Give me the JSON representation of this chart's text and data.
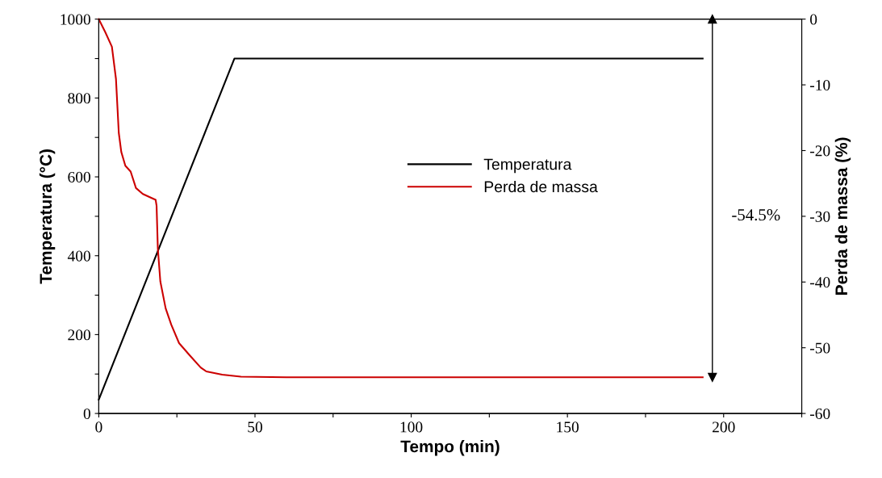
{
  "chart_data": {
    "type": "line",
    "xlabel": "Tempo (min)",
    "ylabel": "Temperatura (°C)",
    "y2label": "Perda de massa (%)",
    "xlim": [
      0,
      225
    ],
    "xticks": [
      0,
      {
        "value": 25,
        "label": null
      },
      50,
      {
        "value": 75,
        "label": null
      },
      100,
      {
        "value": 125,
        "label": null
      },
      150,
      {
        "value": 175,
        "label": null
      },
      200,
      {
        "value": 225,
        "label": null
      }
    ],
    "ylim": [
      0,
      1000
    ],
    "yticks": [
      0,
      {
        "value": 100,
        "label": null
      },
      200,
      {
        "value": 300,
        "label": null
      },
      400,
      {
        "value": 500,
        "label": null
      },
      600,
      {
        "value": 700,
        "label": null
      },
      800,
      {
        "value": 900,
        "label": null
      },
      1000
    ],
    "y2lim": [
      -60,
      0
    ],
    "y2ticks": [
      -60,
      -50,
      -40,
      -30,
      -20,
      -10,
      0
    ],
    "grid": false,
    "legend": "right",
    "marker": "none",
    "line_style": "solid",
    "series": [
      {
        "name": "Temperatura",
        "color": "#000000",
        "x": [
          0,
          43.4,
          193.3
        ],
        "values": [
          35,
          900,
          900
        ]
      },
      {
        "name": "Perda de massa",
        "color": "#cc0000",
        "axis": "y2",
        "x": [
          0,
          2.1,
          4.2,
          5.5,
          6.4,
          7.2,
          8.5,
          10.2,
          11.9,
          14.1,
          18.2,
          18.5,
          18.9,
          19.7,
          21.4,
          23.2,
          25.7,
          29.2,
          32.6,
          34.4,
          39.5,
          45.5,
          60,
          193.3
        ],
        "values": [
          0,
          -2.0,
          -4.2,
          -9.1,
          -17.3,
          -20.2,
          -22.3,
          -23.2,
          -25.7,
          -26.6,
          -27.5,
          -28.4,
          -34.9,
          -39.9,
          -44.0,
          -46.5,
          -49.3,
          -51.2,
          -53.0,
          -53.6,
          -54.1,
          -54.4,
          -54.5,
          -54.5
        ]
      },
      {
        "type": "line",
        "color": "#000000",
        "axis": "y2",
        "marker": "triangle",
        "x": [
          196.4,
          196.4
        ],
        "values": [
          0,
          -54.5
        ]
      }
    ],
    "annotations": [
      "-54.5%"
    ]
  }
}
